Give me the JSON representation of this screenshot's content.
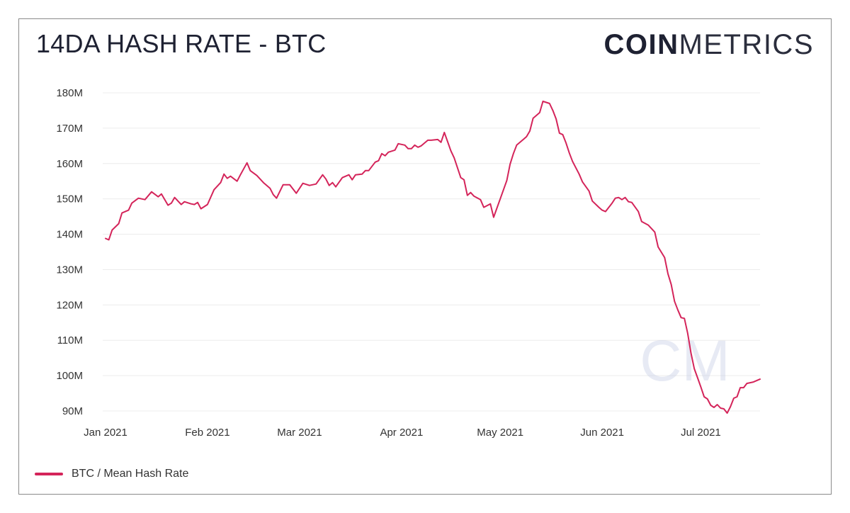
{
  "header": {
    "title": "14DA HASH RATE - BTC",
    "logo_bold": "COIN",
    "logo_light": "METRICS"
  },
  "watermark": "CM",
  "colors": {
    "series": "#d4245a",
    "grid": "#ececec",
    "text": "#1e2132"
  },
  "chart_data": {
    "type": "line",
    "title": "14DA HASH RATE - BTC",
    "xlabel": "",
    "ylabel": "",
    "ylim": [
      90,
      180
    ],
    "yticks": [
      90,
      100,
      110,
      120,
      130,
      140,
      150,
      160,
      170,
      180
    ],
    "ytick_labels": [
      "90M",
      "100M",
      "110M",
      "120M",
      "130M",
      "140M",
      "150M",
      "160M",
      "170M",
      "180M"
    ],
    "xticks": [
      "2021-01-01",
      "2021-02-01",
      "2021-03-01",
      "2021-04-01",
      "2021-05-01",
      "2021-06-01",
      "2021-07-01"
    ],
    "xtick_labels": [
      "Jan 2021",
      "Feb 2021",
      "Mar 2021",
      "Apr 2021",
      "May 2021",
      "Jun 2021",
      "Jul 2021"
    ],
    "xlim": [
      "2021-01-01",
      "2021-07-19"
    ],
    "grid": true,
    "legend_position": "bottom-left",
    "series": [
      {
        "name": "BTC / Mean Hash Rate",
        "unit": "M",
        "points": [
          [
            "2021-01-01",
            138.8
          ],
          [
            "2021-01-02",
            138.4
          ],
          [
            "2021-01-03",
            141.2
          ],
          [
            "2021-01-05",
            143.0
          ],
          [
            "2021-01-06",
            146.0
          ],
          [
            "2021-01-08",
            146.8
          ],
          [
            "2021-01-09",
            148.8
          ],
          [
            "2021-01-11",
            150.2
          ],
          [
            "2021-01-13",
            149.8
          ],
          [
            "2021-01-15",
            152.0
          ],
          [
            "2021-01-17",
            150.6
          ],
          [
            "2021-01-18",
            151.4
          ],
          [
            "2021-01-20",
            148.2
          ],
          [
            "2021-01-21",
            148.8
          ],
          [
            "2021-01-22",
            150.4
          ],
          [
            "2021-01-24",
            148.4
          ],
          [
            "2021-01-25",
            149.2
          ],
          [
            "2021-01-27",
            148.6
          ],
          [
            "2021-01-28",
            148.4
          ],
          [
            "2021-01-29",
            149.0
          ],
          [
            "2021-01-30",
            147.2
          ],
          [
            "2021-02-01",
            148.4
          ],
          [
            "2021-02-03",
            152.6
          ],
          [
            "2021-02-05",
            154.6
          ],
          [
            "2021-02-06",
            157.0
          ],
          [
            "2021-02-07",
            155.8
          ],
          [
            "2021-02-08",
            156.4
          ],
          [
            "2021-02-10",
            155.0
          ],
          [
            "2021-02-11",
            156.8
          ],
          [
            "2021-02-13",
            160.2
          ],
          [
            "2021-02-14",
            158.0
          ],
          [
            "2021-02-16",
            156.6
          ],
          [
            "2021-02-18",
            154.6
          ],
          [
            "2021-02-20",
            153.0
          ],
          [
            "2021-02-21",
            151.2
          ],
          [
            "2021-02-22",
            150.2
          ],
          [
            "2021-02-24",
            154.0
          ],
          [
            "2021-02-26",
            154.0
          ],
          [
            "2021-02-28",
            151.6
          ],
          [
            "2021-03-02",
            154.4
          ],
          [
            "2021-03-04",
            153.8
          ],
          [
            "2021-03-06",
            154.2
          ],
          [
            "2021-03-08",
            156.8
          ],
          [
            "2021-03-09",
            155.6
          ],
          [
            "2021-03-10",
            153.8
          ],
          [
            "2021-03-11",
            154.6
          ],
          [
            "2021-03-12",
            153.4
          ],
          [
            "2021-03-14",
            156.0
          ],
          [
            "2021-03-16",
            156.8
          ],
          [
            "2021-03-17",
            155.4
          ],
          [
            "2021-03-18",
            156.8
          ],
          [
            "2021-03-20",
            157.0
          ],
          [
            "2021-03-21",
            158.0
          ],
          [
            "2021-03-22",
            158.0
          ],
          [
            "2021-03-24",
            160.4
          ],
          [
            "2021-03-25",
            160.8
          ],
          [
            "2021-03-26",
            162.8
          ],
          [
            "2021-03-27",
            162.2
          ],
          [
            "2021-03-28",
            163.2
          ],
          [
            "2021-03-30",
            163.8
          ],
          [
            "2021-03-31",
            165.6
          ],
          [
            "2021-04-02",
            165.2
          ],
          [
            "2021-04-03",
            164.2
          ],
          [
            "2021-04-04",
            164.2
          ],
          [
            "2021-04-05",
            165.2
          ],
          [
            "2021-04-06",
            164.6
          ],
          [
            "2021-04-07",
            165.0
          ],
          [
            "2021-04-09",
            166.6
          ],
          [
            "2021-04-10",
            166.6
          ],
          [
            "2021-04-12",
            166.8
          ],
          [
            "2021-04-13",
            166.0
          ],
          [
            "2021-04-14",
            168.8
          ],
          [
            "2021-04-16",
            163.6
          ],
          [
            "2021-04-17",
            161.6
          ],
          [
            "2021-04-19",
            156.0
          ],
          [
            "2021-04-20",
            155.4
          ],
          [
            "2021-04-21",
            151.0
          ],
          [
            "2021-04-22",
            151.8
          ],
          [
            "2021-04-23",
            150.8
          ],
          [
            "2021-04-25",
            149.8
          ],
          [
            "2021-04-26",
            147.6
          ],
          [
            "2021-04-28",
            148.6
          ],
          [
            "2021-04-29",
            144.8
          ],
          [
            "2021-05-01",
            150.0
          ],
          [
            "2021-05-03",
            155.2
          ],
          [
            "2021-05-04",
            159.8
          ],
          [
            "2021-05-05",
            162.8
          ],
          [
            "2021-05-06",
            165.2
          ],
          [
            "2021-05-08",
            166.8
          ],
          [
            "2021-05-09",
            167.6
          ],
          [
            "2021-05-10",
            169.2
          ],
          [
            "2021-05-11",
            172.8
          ],
          [
            "2021-05-12",
            173.6
          ],
          [
            "2021-05-13",
            174.4
          ],
          [
            "2021-05-14",
            177.6
          ],
          [
            "2021-05-16",
            177.0
          ],
          [
            "2021-05-17",
            175.0
          ],
          [
            "2021-05-18",
            172.6
          ],
          [
            "2021-05-19",
            168.6
          ],
          [
            "2021-05-20",
            168.2
          ],
          [
            "2021-05-21",
            165.8
          ],
          [
            "2021-05-22",
            163.0
          ],
          [
            "2021-05-23",
            160.6
          ],
          [
            "2021-05-25",
            157.0
          ],
          [
            "2021-05-26",
            154.8
          ],
          [
            "2021-05-28",
            152.2
          ],
          [
            "2021-05-29",
            149.4
          ],
          [
            "2021-05-31",
            147.6
          ],
          [
            "2021-06-01",
            146.8
          ],
          [
            "2021-06-02",
            146.4
          ],
          [
            "2021-06-04",
            148.8
          ],
          [
            "2021-06-05",
            150.2
          ],
          [
            "2021-06-06",
            150.4
          ],
          [
            "2021-06-07",
            149.8
          ],
          [
            "2021-06-08",
            150.4
          ],
          [
            "2021-06-09",
            149.2
          ],
          [
            "2021-06-10",
            149.0
          ],
          [
            "2021-06-12",
            146.4
          ],
          [
            "2021-06-13",
            143.6
          ],
          [
            "2021-06-15",
            142.6
          ],
          [
            "2021-06-17",
            140.6
          ],
          [
            "2021-06-18",
            136.4
          ],
          [
            "2021-06-20",
            133.4
          ],
          [
            "2021-06-21",
            128.8
          ],
          [
            "2021-06-22",
            125.8
          ],
          [
            "2021-06-23",
            121.0
          ],
          [
            "2021-06-24",
            118.6
          ],
          [
            "2021-06-25",
            116.4
          ],
          [
            "2021-06-26",
            116.2
          ],
          [
            "2021-06-27",
            112.0
          ],
          [
            "2021-06-28",
            106.4
          ],
          [
            "2021-06-29",
            102.0
          ],
          [
            "2021-06-30",
            99.4
          ],
          [
            "2021-07-01",
            96.8
          ],
          [
            "2021-07-02",
            94.0
          ],
          [
            "2021-07-03",
            93.4
          ],
          [
            "2021-07-04",
            91.6
          ],
          [
            "2021-07-05",
            91.0
          ],
          [
            "2021-07-06",
            91.8
          ],
          [
            "2021-07-07",
            90.8
          ],
          [
            "2021-07-08",
            90.6
          ],
          [
            "2021-07-09",
            89.4
          ],
          [
            "2021-07-10",
            91.2
          ],
          [
            "2021-07-11",
            93.6
          ],
          [
            "2021-07-12",
            94.0
          ],
          [
            "2021-07-13",
            96.6
          ],
          [
            "2021-07-14",
            96.6
          ],
          [
            "2021-07-15",
            97.8
          ],
          [
            "2021-07-17",
            98.2
          ],
          [
            "2021-07-19",
            99.0
          ]
        ]
      }
    ]
  }
}
